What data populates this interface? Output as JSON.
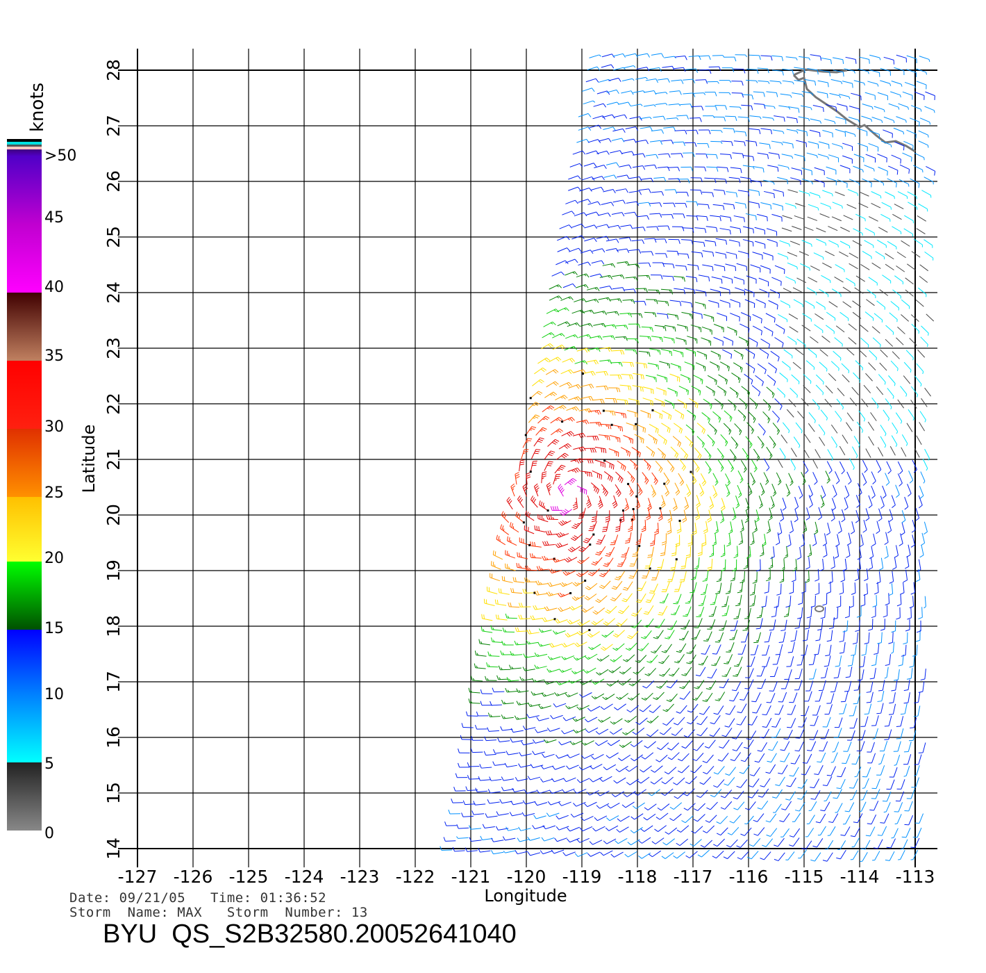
{
  "map": {
    "x_label": "Longitude",
    "y_label": "Latitude",
    "lon_ticks": [
      "-127",
      "-126",
      "-125",
      "-124",
      "-123",
      "-122",
      "-121",
      "-120",
      "-119",
      "-118",
      "-117",
      "-116",
      "-115",
      "-114",
      "-113"
    ],
    "lat_ticks": [
      "28",
      "27",
      "26",
      "25",
      "24",
      "23",
      "22",
      "21",
      "20",
      "19",
      "18",
      "17",
      "16",
      "15",
      "14"
    ],
    "lon_range": [
      -127,
      -113
    ],
    "lat_range": [
      14,
      28
    ],
    "grid": true
  },
  "colorbar": {
    "unit": "knots",
    "labels": [
      ">50",
      "45",
      "40",
      "35",
      "30",
      "25",
      "20",
      "15",
      "10",
      "5",
      "0"
    ],
    "colors": {
      "calm": "#888888",
      "low": "#00ffff",
      "blue": "#0000ff",
      "green": "#00ff00",
      "yellow": "#ffff00",
      "orange": "#ff8000",
      "red": "#ff0000",
      "brown": "#400000",
      "magenta": "#ff00ff",
      "purple": "#5000d0",
      "coast": "#777777"
    }
  },
  "footer": {
    "date_line": "Date: 09/21/05   Time: 01:36:52",
    "storm_line": "Storm  Name: MAX   Storm  Number: 13",
    "title": "BYU  QS_S2B32580.20052641040"
  }
}
